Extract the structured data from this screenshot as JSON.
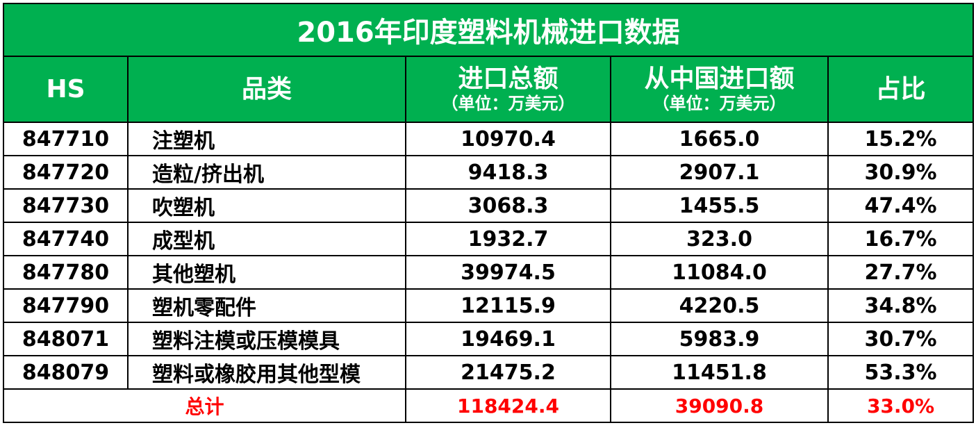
{
  "title": "2016年印度塑料机械进口数据",
  "headers": {
    "hs": "HS",
    "category": "品类",
    "total_import": "进口总额",
    "total_import_unit": "（单位：万美元）",
    "china_import": "从中国进口额",
    "china_import_unit": "（单位：万美元）",
    "ratio": "占比"
  },
  "rows": [
    {
      "hs": "847710",
      "category": "注塑机",
      "total": "10970.4",
      "china": "1665.0",
      "ratio": "15.2%"
    },
    {
      "hs": "847720",
      "category": "造粒/挤出机",
      "total": "9418.3",
      "china": "2907.1",
      "ratio": "30.9%"
    },
    {
      "hs": "847730",
      "category": "吹塑机",
      "total": "3068.3",
      "china": "1455.5",
      "ratio": "47.4%"
    },
    {
      "hs": "847740",
      "category": "成型机",
      "total": "1932.7",
      "china": "323.0",
      "ratio": "16.7%"
    },
    {
      "hs": "847780",
      "category": "其他塑机",
      "total": "39974.5",
      "china": "11084.0",
      "ratio": "27.7%"
    },
    {
      "hs": "847790",
      "category": "塑机零配件",
      "total": "12115.9",
      "china": "4220.5",
      "ratio": "34.8%"
    },
    {
      "hs": "848071",
      "category": "塑料注模或压模模具",
      "total": "19469.1",
      "china": "5983.9",
      "ratio": "30.7%"
    },
    {
      "hs": "848079",
      "category": "塑料或橡胶用其他型模",
      "total": "21475.2",
      "china": "11451.8",
      "ratio": "53.3%"
    }
  ],
  "total_row": {
    "label": "总计",
    "total": "118424.4",
    "china": "39090.8",
    "ratio": "33.0%"
  },
  "colors": {
    "header_bg": "#00b050",
    "header_text": "#ffffff",
    "total_text": "#ff0000",
    "border": "#000000"
  }
}
